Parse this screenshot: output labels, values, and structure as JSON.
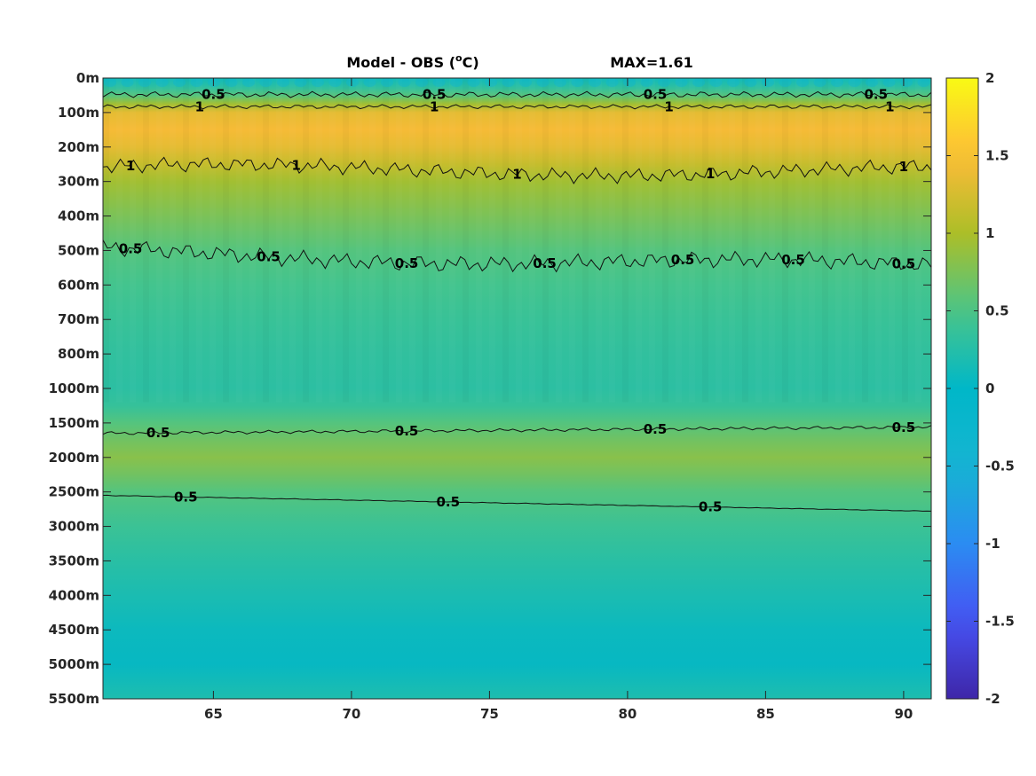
{
  "chart_data": {
    "type": "heatmap",
    "title": "Model - OBS (",
    "title_unit_sup": "o",
    "title_unit_tail": "C)",
    "max_label": "MAX=1.61",
    "xlim": [
      61,
      91
    ],
    "x_ticks": [
      65,
      70,
      75,
      80,
      85,
      90
    ],
    "y_tick_labels": [
      "0m",
      "100m",
      "200m",
      "300m",
      "400m",
      "500m",
      "600m",
      "700m",
      "800m",
      "1000m",
      "1500m",
      "2000m",
      "2500m",
      "3000m",
      "3500m",
      "4000m",
      "4500m",
      "5000m",
      "5500m"
    ],
    "depth_profile": [
      {
        "depth": "0m",
        "value": 0.1
      },
      {
        "depth": "25m",
        "value": 0.3
      },
      {
        "depth": "50m",
        "value": 0.55
      },
      {
        "depth": "75m",
        "value": 0.95
      },
      {
        "depth": "100m",
        "value": 1.35
      },
      {
        "depth": "150m",
        "value": 1.45
      },
      {
        "depth": "200m",
        "value": 1.35
      },
      {
        "depth": "250m",
        "value": 1.15
      },
      {
        "depth": "300m",
        "value": 0.95
      },
      {
        "depth": "400m",
        "value": 0.75
      },
      {
        "depth": "500m",
        "value": 0.55
      },
      {
        "depth": "600m",
        "value": 0.45
      },
      {
        "depth": "700m",
        "value": 0.38
      },
      {
        "depth": "800m",
        "value": 0.33
      },
      {
        "depth": "1000m",
        "value": 0.3
      },
      {
        "depth": "1250m",
        "value": 0.36
      },
      {
        "depth": "1500m",
        "value": 0.55
      },
      {
        "depth": "1750m",
        "value": 0.7
      },
      {
        "depth": "2000m",
        "value": 0.82
      },
      {
        "depth": "2250m",
        "value": 0.7
      },
      {
        "depth": "2500m",
        "value": 0.55
      },
      {
        "depth": "3000m",
        "value": 0.4
      },
      {
        "depth": "3500m",
        "value": 0.28
      },
      {
        "depth": "4000m",
        "value": 0.18
      },
      {
        "depth": "4500m",
        "value": 0.08
      },
      {
        "depth": "5000m",
        "value": 0.05
      },
      {
        "depth": "5500m",
        "value": 0.2
      }
    ],
    "contours": [
      {
        "level": "0.5",
        "depth": "~50m",
        "labels_at_x": [
          65,
          73,
          81,
          89
        ]
      },
      {
        "level": "1",
        "depth": "~85m",
        "labels_at_x": [
          64.5,
          73,
          81.5,
          89.5
        ]
      },
      {
        "level": "1",
        "depth": "~270m",
        "labels_at_x": [
          62,
          68,
          76,
          83,
          90
        ]
      },
      {
        "level": "0.5",
        "depth": "~500-560m",
        "labels_at_x": [
          62,
          67,
          72,
          77,
          82,
          86,
          90
        ]
      },
      {
        "level": "0.5",
        "depth": "~1600m",
        "labels_at_x": [
          63,
          72,
          81,
          90
        ]
      },
      {
        "level": "0.5",
        "depth": "~2600-2800m",
        "labels_at_x": [
          64,
          73.5,
          83
        ]
      }
    ],
    "colorbar": {
      "clim": [
        -2,
        2
      ],
      "ticks": [
        "2",
        "1.5",
        "1",
        "0.5",
        "0",
        "-0.5",
        "-1",
        "-1.5",
        "-2"
      ],
      "colormap": "parula"
    },
    "grid": false
  }
}
